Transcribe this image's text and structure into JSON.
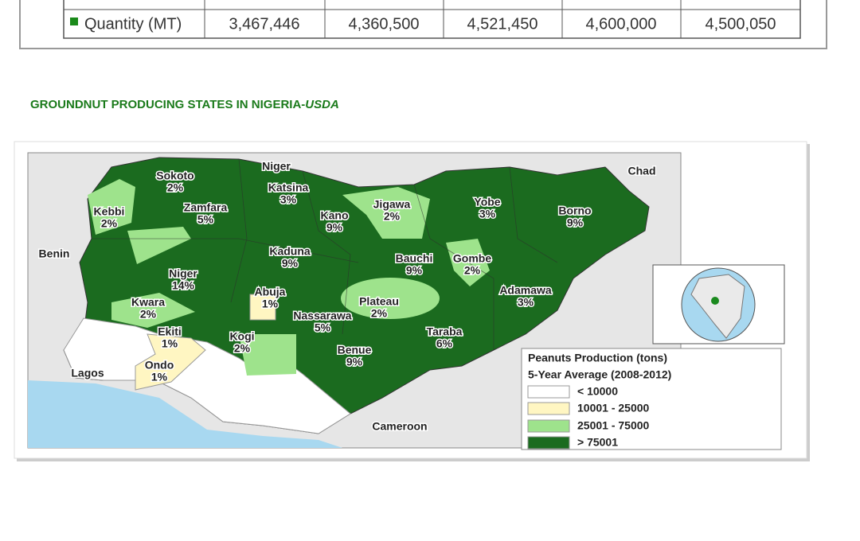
{
  "table": {
    "rows": [
      [
        "Quantity (MT)",
        "3,467,446",
        "4,360,500",
        "4,521,450",
        "4,600,000",
        "4,500,050"
      ]
    ]
  },
  "heading": {
    "text": "GROUNDNUT PRODUCING STATES IN NIGERIA-",
    "source": "USDA"
  },
  "map": {
    "countries": [
      "Niger",
      "Chad",
      "Benin",
      "Lagos",
      "Cameroon"
    ],
    "states": [
      {
        "name": "Sokoto",
        "share": "2%"
      },
      {
        "name": "Kebbi",
        "share": "2%"
      },
      {
        "name": "Zamfara",
        "share": "5%"
      },
      {
        "name": "Katsina",
        "share": "3%"
      },
      {
        "name": "Kano",
        "share": "9%"
      },
      {
        "name": "Jigawa",
        "share": "2%"
      },
      {
        "name": "Yobe",
        "share": "3%"
      },
      {
        "name": "Borno",
        "share": "9%"
      },
      {
        "name": "Kaduna",
        "share": "9%"
      },
      {
        "name": "Niger",
        "share": "14%"
      },
      {
        "name": "Bauchi",
        "share": "9%"
      },
      {
        "name": "Gombe",
        "share": "2%"
      },
      {
        "name": "Abuja",
        "share": "1%"
      },
      {
        "name": "Adamawa",
        "share": "3%"
      },
      {
        "name": "Plateau",
        "share": "2%"
      },
      {
        "name": "Kwara",
        "share": "2%"
      },
      {
        "name": "Nassarawa",
        "share": "5%"
      },
      {
        "name": "Taraba",
        "share": "6%"
      },
      {
        "name": "Ekiti",
        "share": "1%"
      },
      {
        "name": "Kogi",
        "share": "2%"
      },
      {
        "name": "Benue",
        "share": "9%"
      },
      {
        "name": "Ondo",
        "share": "1%"
      }
    ],
    "legend": {
      "title": "Peanuts Production (tons)",
      "subtitle": "5-Year Average (2008-2012)",
      "items": [
        "< 10000",
        "10001 - 25000",
        "25001 - 75000",
        "> 75001"
      ]
    }
  }
}
